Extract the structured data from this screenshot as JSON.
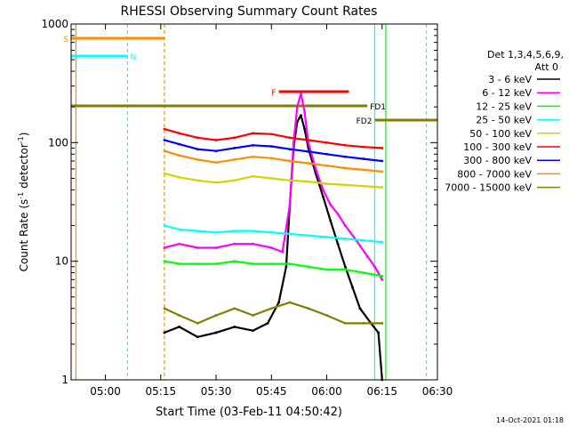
{
  "chart_data": {
    "type": "line",
    "title": "RHESSI Observing Summary Count Rates",
    "xlabel": "Start Time (03-Feb-11 04:50:42)",
    "ylabel_main": "Count Rate (s",
    "ylabel_sup1": "-1",
    "ylabel_mid": " detector",
    "ylabel_sup2": "-1",
    "ylabel_end": ")",
    "footer": "14-Oct-2021 01:18",
    "y_scale": "log",
    "ylim": [
      1,
      1000
    ],
    "xlim": [
      "04:50:42",
      "06:30"
    ],
    "x_ticks": [
      "05:00",
      "05:15",
      "05:30",
      "05:45",
      "06:00",
      "06:15",
      "06:30"
    ],
    "y_ticks": [
      "1",
      "10",
      "100",
      "1000"
    ],
    "legend": {
      "header1": "Det 1,3,4,5,6,9,",
      "header2": "Att 0",
      "placement": "right",
      "entries": [
        {
          "label": "3 - 6 keV",
          "color": "#000000"
        },
        {
          "label": "6 - 12 keV",
          "color": "#ff00ff"
        },
        {
          "label": "12 - 25 keV",
          "color": "#00ff00"
        },
        {
          "label": "25 - 50 keV",
          "color": "#00ffff"
        },
        {
          "label": "50 - 100 keV",
          "color": "#d4d400"
        },
        {
          "label": "100 - 300 keV",
          "color": "#ff0000"
        },
        {
          "label": "300 - 800 keV",
          "color": "#0000ff"
        },
        {
          "label": "800 - 7000 keV",
          "color": "#ff8c00"
        },
        {
          "label": "7000 - 15000 keV",
          "color": "#808000"
        }
      ]
    },
    "series": [
      {
        "name": "3 - 6 keV",
        "color": "#000000",
        "x": [
          "05:16",
          "05:20",
          "05:25",
          "05:30",
          "05:35",
          "05:40",
          "05:44",
          "05:47",
          "05:49",
          "05:50",
          "05:51",
          "05:52",
          "05:53",
          "05:54",
          "05:55",
          "05:57",
          "05:59",
          "06:01",
          "06:03",
          "06:05",
          "06:07",
          "06:09",
          "06:12",
          "06:14",
          "06:15"
        ],
        "y": [
          2.5,
          2.8,
          2.3,
          2.5,
          2.8,
          2.6,
          3.0,
          4.5,
          9,
          30,
          90,
          150,
          170,
          130,
          90,
          55,
          35,
          22,
          14,
          9,
          6,
          4,
          3,
          2.5,
          1
        ]
      },
      {
        "name": "6 - 12 keV",
        "color": "#ff00ff",
        "x": [
          "05:16",
          "05:20",
          "05:25",
          "05:30",
          "05:35",
          "05:40",
          "05:45",
          "05:48",
          "05:50",
          "05:51",
          "05:52",
          "05:53",
          "05:54",
          "05:55",
          "05:57",
          "05:59",
          "06:01",
          "06:03",
          "06:05",
          "06:08",
          "06:11",
          "06:13",
          "06:15"
        ],
        "y": [
          13,
          14,
          13,
          13,
          14,
          14,
          13,
          12,
          30,
          100,
          200,
          260,
          180,
          100,
          60,
          40,
          30,
          25,
          20,
          15,
          11,
          9,
          7
        ]
      },
      {
        "name": "12 - 25 keV",
        "color": "#00ff00",
        "x": [
          "05:16",
          "05:20",
          "05:25",
          "05:30",
          "05:35",
          "05:40",
          "05:45",
          "05:50",
          "05:55",
          "06:00",
          "06:05",
          "06:10",
          "06:15"
        ],
        "y": [
          10,
          9.5,
          9.5,
          9.5,
          10,
          9.5,
          9.5,
          9.5,
          9,
          8.5,
          8.5,
          8,
          7.5
        ]
      },
      {
        "name": "25 - 50 keV",
        "color": "#00ffff",
        "x": [
          "05:16",
          "05:20",
          "05:25",
          "05:30",
          "05:35",
          "05:40",
          "05:45",
          "05:50",
          "05:55",
          "06:00",
          "06:05",
          "06:10",
          "06:15"
        ],
        "y": [
          20,
          18.5,
          18,
          17.5,
          18,
          18,
          17.5,
          17,
          16.5,
          16,
          15.5,
          15,
          14.5
        ]
      },
      {
        "name": "50 - 100 keV",
        "color": "#d4d400",
        "x": [
          "05:16",
          "05:20",
          "05:25",
          "05:30",
          "05:35",
          "05:40",
          "05:45",
          "05:50",
          "05:55",
          "06:00",
          "06:05",
          "06:10",
          "06:15"
        ],
        "y": [
          55,
          51,
          48,
          46,
          48,
          52,
          50,
          48,
          47,
          45,
          44,
          43,
          42
        ]
      },
      {
        "name": "100 - 300 keV",
        "color": "#ff0000",
        "x": [
          "05:16",
          "05:20",
          "05:25",
          "05:30",
          "05:35",
          "05:40",
          "05:45",
          "05:50",
          "05:55",
          "06:00",
          "06:05",
          "06:10",
          "06:15"
        ],
        "y": [
          130,
          120,
          110,
          105,
          110,
          120,
          118,
          110,
          105,
          100,
          95,
          92,
          90
        ]
      },
      {
        "name": "300 - 800 keV",
        "color": "#0000ff",
        "x": [
          "05:16",
          "05:20",
          "05:25",
          "05:30",
          "05:35",
          "05:40",
          "05:45",
          "05:50",
          "05:55",
          "06:00",
          "06:05",
          "06:10",
          "06:15"
        ],
        "y": [
          105,
          97,
          88,
          85,
          90,
          95,
          93,
          88,
          84,
          80,
          76,
          73,
          70
        ]
      },
      {
        "name": "800 - 7000 keV",
        "color": "#ff8c00",
        "x": [
          "05:16",
          "05:20",
          "05:25",
          "05:30",
          "05:35",
          "05:40",
          "05:45",
          "05:50",
          "05:55",
          "06:00",
          "06:05",
          "06:10",
          "06:15"
        ],
        "y": [
          85,
          78,
          72,
          68,
          72,
          76,
          74,
          70,
          67,
          64,
          61,
          59,
          57
        ]
      },
      {
        "name": "7000 - 15000 keV",
        "color": "#808000",
        "x": [
          "05:16",
          "05:20",
          "05:25",
          "05:30",
          "05:35",
          "05:40",
          "05:45",
          "05:50",
          "05:55",
          "06:00",
          "06:05",
          "06:10",
          "06:15"
        ],
        "y": [
          4,
          3.5,
          3,
          3.5,
          4,
          3.5,
          4,
          4.5,
          4,
          3.5,
          3,
          3,
          3
        ]
      }
    ],
    "flags": [
      {
        "label": "S",
        "color": "#ff8c00",
        "x_start": "04:50:42",
        "x_end": "05:16",
        "level": 0.96
      },
      {
        "label": "N",
        "color": "#00ffff",
        "x_start": "04:50:42",
        "x_end": "05:06",
        "level": 0.91
      },
      {
        "label": "F",
        "color": "#ff0000",
        "x_start": "05:47",
        "x_end": "06:06",
        "level": 0.81
      },
      {
        "label": "FD1",
        "color": "#808000",
        "x_start": "04:50:42",
        "x_end": "06:11",
        "level": 0.77
      },
      {
        "label": "FD2",
        "color": "#808000",
        "x_start": "06:13",
        "x_end": "06:30",
        "level": 0.73
      }
    ],
    "vlines": [
      {
        "x": "04:52",
        "color": "#ff8c00",
        "style": "solid"
      },
      {
        "x": "05:06",
        "color": "#00ffff",
        "style": "dashed"
      },
      {
        "x": "05:16",
        "color": "#ff8c00",
        "style": "dashed"
      },
      {
        "x": "06:13",
        "color": "#00ffff",
        "style": "solid"
      },
      {
        "x": "06:16",
        "color": "#00ff00",
        "style": "solid"
      },
      {
        "x": "06:27",
        "color": "#00ffff",
        "style": "dashed"
      }
    ],
    "grid": false
  }
}
